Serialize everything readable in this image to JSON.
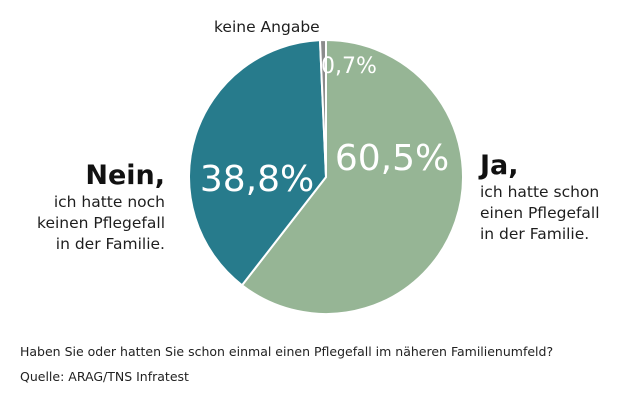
{
  "chart_data": {
    "type": "pie",
    "slices": [
      {
        "key": "yes",
        "value": 60.5,
        "value_label": "60,5%",
        "color": "#96b595"
      },
      {
        "key": "no",
        "value": 38.8,
        "value_label": "38,8%",
        "color": "#277b8c"
      },
      {
        "key": "none",
        "value": 0.7,
        "value_label": "0,7%",
        "color": "#8c8c8c"
      }
    ],
    "labels": {
      "yes": {
        "head": "Ja,",
        "lines": [
          "ich hatte schon",
          "einen Pflegefall",
          "in der Familie."
        ]
      },
      "no": {
        "head": "Nein,",
        "lines": [
          "ich hatte noch",
          "keinen Pflegefall",
          "in der Familie."
        ]
      },
      "none": {
        "text": "keine Angabe"
      }
    },
    "question": "Haben Sie oder hatten Sie schon einmal einen Pflegefall im näheren Familienumfeld?",
    "source": "Quelle: ARAG/TNS Infratest"
  }
}
